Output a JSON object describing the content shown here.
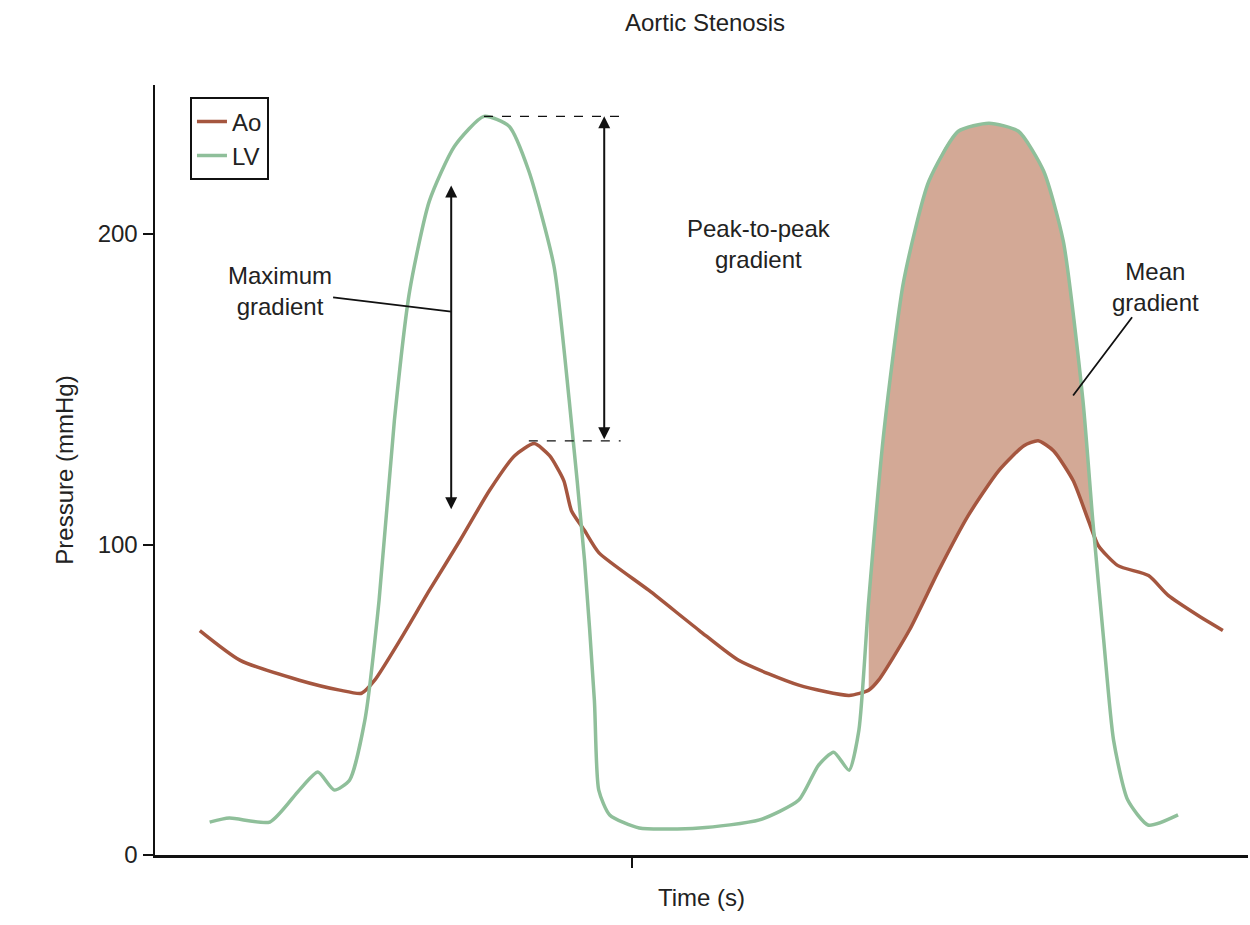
{
  "chart_data": {
    "type": "line",
    "title": "Aortic Stenosis",
    "x_label": "Time (s)",
    "y_label": "Pressure (mmHg)",
    "xlim": [
      0,
      100
    ],
    "xticks": [
      43.6
    ],
    "ylim": [
      0,
      248
    ],
    "yticks": [
      0,
      100,
      200
    ],
    "grid": false,
    "legend": "upper left",
    "tick_labels": "y",
    "series": [
      {
        "name": "Ao",
        "color": "#a5563f",
        "line_style": "solid",
        "x": [
          4.1,
          7.8,
          13.2,
          16.9,
          18.9,
          20.1,
          22.4,
          25.1,
          27.9,
          30.6,
          32.9,
          34.7,
          36.1,
          37.4,
          38.1,
          39.3,
          40.6,
          45.2,
          49.8,
          53.4,
          58.9,
          63.5,
          65.3,
          66.2,
          69.0,
          71.7,
          74.4,
          77.2,
          79.5,
          80.8,
          82.2,
          84.0,
          85.4,
          86.3,
          88.1,
          90.9,
          92.7,
          95.4,
          97.7
        ],
        "values": [
          72.3,
          62.7,
          56.3,
          53.1,
          52.1,
          56.3,
          69.1,
          85.2,
          101.3,
          117.4,
          128.6,
          132.5,
          128.6,
          120.6,
          110.9,
          104.5,
          97.4,
          85.2,
          72.3,
          62.7,
          54.7,
          51.4,
          53.1,
          56.3,
          72.3,
          91.6,
          109.3,
          123.8,
          131.8,
          133.4,
          130.2,
          120.6,
          107.7,
          99.7,
          93.2,
          90.0,
          83.6,
          77.2,
          72.3
        ]
      },
      {
        "name": "LV",
        "color": "#8fbf9a",
        "line_style": "solid",
        "x": [
          5.0,
          6.8,
          10.5,
          13.2,
          14.9,
          16.4,
          17.8,
          19.2,
          20.5,
          21.9,
          23.3,
          25.1,
          27.4,
          30.1,
          32.4,
          34.2,
          36.5,
          37.9,
          39.3,
          40.2,
          40.6,
          41.6,
          44.3,
          49.8,
          55.3,
          58.9,
          60.7,
          62.1,
          63.5,
          64.4,
          65.3,
          66.7,
          68.5,
          70.8,
          73.5,
          76.3,
          79.0,
          81.3,
          83.1,
          84.9,
          85.8,
          86.8,
          87.7,
          89.0,
          90.9,
          93.6
        ],
        "values": [
          10.6,
          11.9,
          10.6,
          20.9,
          26.7,
          20.9,
          24.1,
          43.4,
          82.0,
          139.9,
          181.7,
          210.6,
          228.3,
          237.9,
          234.7,
          220.3,
          189.7,
          146.3,
          94.9,
          49.8,
          20.9,
          12.9,
          8.7,
          8.7,
          11.3,
          17.7,
          28.9,
          33.1,
          27.3,
          40.2,
          82.0,
          136.7,
          184.9,
          217.0,
          233.1,
          235.7,
          233.1,
          220.3,
          197.7,
          146.3,
          107.7,
          69.1,
          37.0,
          17.7,
          9.6,
          12.9
        ]
      }
    ],
    "annotations": [
      {
        "text": "Maximum gradient",
        "x": 27.1,
        "y0": 110.9,
        "y1": 215.6,
        "label_x": 11.4,
        "label_y": 181.7,
        "pointer_y": 175
      },
      {
        "text": "Peak-to-peak gradient",
        "x": 41.1,
        "y0": 133.4,
        "y1": 237.9,
        "guide_x0": 34.2,
        "guide_x1": 30.1,
        "label_x": 55.3,
        "label_y": 196.8
      },
      {
        "text": "Mean gradient",
        "x0": 65.3,
        "x1": 86.3,
        "color": "#d3a996",
        "label_x": 91.5,
        "label_y": 183,
        "pointer_x": 84.0,
        "pointer_y": 148
      }
    ]
  }
}
